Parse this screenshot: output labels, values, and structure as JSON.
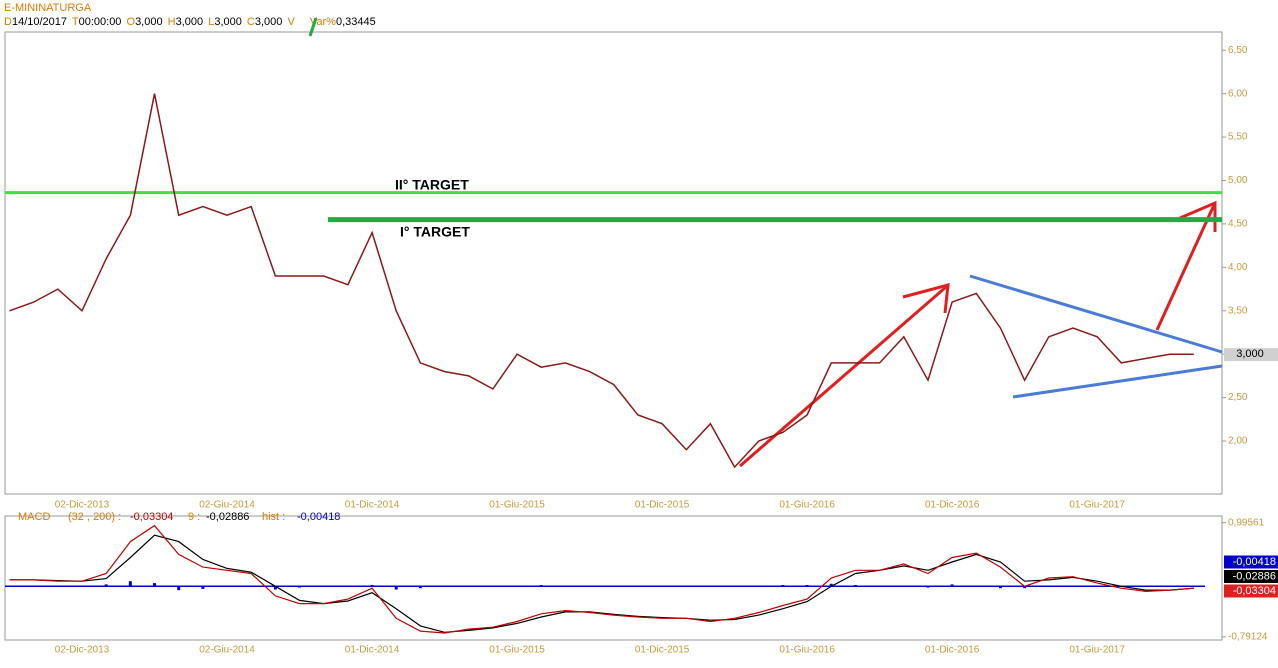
{
  "chart_data": [
    {
      "type": "line",
      "title": "E-MININATURGA",
      "header": [
        {
          "key": "D",
          "value": "14/10/2017"
        },
        {
          "key": "T",
          "value": "00:00:00"
        },
        {
          "key": "O",
          "value": "3,000"
        },
        {
          "key": "H",
          "value": "3,000"
        },
        {
          "key": "L",
          "value": "3,000"
        },
        {
          "key": "C",
          "value": "3,000"
        },
        {
          "key": "V",
          "value": null
        },
        {
          "key": "Var%",
          "value": "0,33445"
        }
      ],
      "categories": [
        null,
        null,
        null,
        "02-Dic-2013",
        null,
        null,
        null,
        null,
        null,
        "02-Giu-2014",
        null,
        null,
        null,
        null,
        null,
        "01-Dic-2014",
        null,
        null,
        null,
        null,
        null,
        "01-Giu-2015",
        null,
        null,
        null,
        null,
        null,
        "01-Dic-2015",
        null,
        null,
        null,
        null,
        null,
        "01-Giu-2016",
        null,
        null,
        null,
        null,
        null,
        "01-Dic-2016",
        null,
        null,
        null,
        null,
        null,
        "01-Giu-2017",
        null,
        null,
        null,
        null
      ],
      "values": [
        3.5,
        3.6,
        3.75,
        3.5,
        4.1,
        4.6,
        6.0,
        4.6,
        4.7,
        4.6,
        4.7,
        3.9,
        3.9,
        3.9,
        3.8,
        4.4,
        3.5,
        2.9,
        2.8,
        2.75,
        2.6,
        3.0,
        2.85,
        2.9,
        2.8,
        2.65,
        2.3,
        2.2,
        1.9,
        2.2,
        1.7,
        2.0,
        2.1,
        2.3,
        2.9,
        2.9,
        2.9,
        3.2,
        2.7,
        3.6,
        3.7,
        3.3,
        2.7,
        3.2,
        3.3,
        3.2,
        2.9,
        2.95,
        3.0,
        3.0
      ],
      "color": "#8b1a1a",
      "ylim": [
        1.39,
        6.71
      ],
      "yticks": [
        {
          "value": 2.0,
          "label": "2,00"
        },
        {
          "value": 2.5,
          "label": "2,50"
        },
        {
          "value": 3.0,
          "label": "3,00"
        },
        {
          "value": 3.5,
          "label": "3,50"
        },
        {
          "value": 4.0,
          "label": "4,00"
        },
        {
          "value": 4.5,
          "label": "4,50"
        },
        {
          "value": 5.0,
          "label": "5,00"
        },
        {
          "value": 5.5,
          "label": "5,50"
        },
        {
          "value": 6.0,
          "label": "6,00"
        },
        {
          "value": 6.5,
          "label": "6,50"
        }
      ],
      "last": {
        "value": 3.0,
        "label": "3,000"
      },
      "annotations": [
        {
          "text": "II° TARGET",
          "value": 4.86,
          "color": "#44dd44"
        },
        {
          "text": "I° TARGET",
          "value": 4.55,
          "color": "#22aa44"
        }
      ]
    },
    {
      "type": "macd",
      "title": "MACD",
      "series": [
        {
          "name": "(32 , 200) :",
          "color": "#c00000",
          "last_label": "-0,03304",
          "last_value": -0.03304,
          "values": [
            0.1,
            0.1,
            0.08,
            0.08,
            0.2,
            0.7,
            0.95,
            0.5,
            0.3,
            0.25,
            0.2,
            -0.15,
            -0.27,
            -0.27,
            -0.2,
            -0.03,
            -0.5,
            -0.7,
            -0.73,
            -0.67,
            -0.64,
            -0.55,
            -0.43,
            -0.38,
            -0.41,
            -0.45,
            -0.48,
            -0.5,
            -0.5,
            -0.55,
            -0.5,
            -0.41,
            -0.3,
            -0.2,
            0.13,
            0.25,
            0.25,
            0.35,
            0.2,
            0.45,
            0.52,
            0.3,
            0,
            0.13,
            0.15,
            0.05,
            -0.03,
            -0.08,
            -0.06,
            -0.03
          ]
        },
        {
          "name": "9 :",
          "color": "#000000",
          "last_label": "-0,02886",
          "last_value": -0.02886,
          "values": [
            0.1,
            0.1,
            0.09,
            0.08,
            0.12,
            0.45,
            0.8,
            0.7,
            0.42,
            0.28,
            0.22,
            0.0,
            -0.22,
            -0.27,
            -0.23,
            -0.1,
            -0.35,
            -0.62,
            -0.72,
            -0.69,
            -0.65,
            -0.58,
            -0.48,
            -0.4,
            -0.4,
            -0.44,
            -0.47,
            -0.49,
            -0.5,
            -0.53,
            -0.52,
            -0.45,
            -0.35,
            -0.24,
            0.0,
            0.2,
            0.25,
            0.32,
            0.25,
            0.38,
            0.5,
            0.38,
            0.08,
            0.1,
            0.14,
            0.08,
            0.0,
            -0.06,
            -0.06,
            -0.03
          ]
        },
        {
          "name": "hist :",
          "color": "#0000cc",
          "last_label": "-0,00418",
          "last_value": -0.00418,
          "values": [
            0,
            0,
            -0.01,
            0,
            0.03,
            0.08,
            0.05,
            -0.06,
            -0.04,
            -0.01,
            -0.01,
            -0.05,
            -0.02,
            0,
            0.01,
            0.02,
            -0.05,
            -0.03,
            0,
            0.01,
            0.01,
            0.01,
            0.02,
            0.01,
            0,
            0,
            0,
            0,
            0,
            -0.01,
            0.01,
            0.01,
            0.02,
            0.02,
            0.04,
            0.02,
            0,
            0.01,
            -0.02,
            0.03,
            0.01,
            -0.03,
            -0.03,
            0.01,
            0,
            -0.01,
            -0.01,
            -0.01,
            0,
            0
          ]
        }
      ],
      "ylim": [
        -0.84,
        1.1
      ],
      "yticks": [
        {
          "value": 0.99561,
          "label": "0,99561"
        },
        {
          "value": -0.79124,
          "label": "-0,79124"
        }
      ]
    }
  ]
}
